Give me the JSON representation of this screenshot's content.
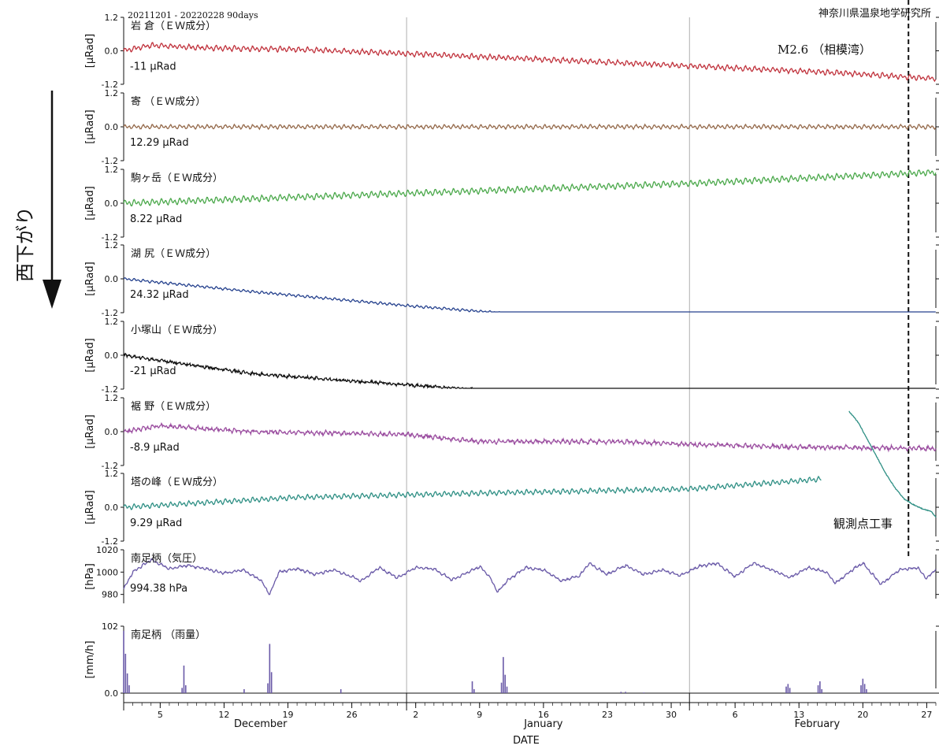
{
  "header": {
    "period": "20211201 - 20220228 90days",
    "institution": "神奈川県温泉地学研究所"
  },
  "left_annotation": "西下がり",
  "event": {
    "label": "M2.6 （相模湾）"
  },
  "construction_note": "観測点工事",
  "chart_data": {
    "type": "line",
    "x_unit": "day index (1 = Dec 1, 2021)",
    "x_range": [
      1,
      90
    ],
    "event_day": 87,
    "x_ticks": [
      {
        "day": 5,
        "label": "5"
      },
      {
        "day": 12,
        "label": "12"
      },
      {
        "day": 19,
        "label": "19"
      },
      {
        "day": 26,
        "label": "26"
      },
      {
        "day": 33,
        "label": "2"
      },
      {
        "day": 40,
        "label": "9"
      },
      {
        "day": 47,
        "label": "16"
      },
      {
        "day": 54,
        "label": "23"
      },
      {
        "day": 61,
        "label": "30"
      },
      {
        "day": 68,
        "label": "6"
      },
      {
        "day": 75,
        "label": "13"
      },
      {
        "day": 82,
        "label": "20"
      },
      {
        "day": 89,
        "label": "27"
      }
    ],
    "month_labels": [
      {
        "day": 16,
        "label": "December"
      },
      {
        "day": 47,
        "label": "January"
      },
      {
        "day": 77,
        "label": "February"
      }
    ],
    "month_boundaries": [
      32,
      63
    ],
    "xlabel": "DATE",
    "panels": [
      {
        "name": "岩 倉（ＥＷ成分）",
        "ylabel": "[μRad]",
        "value_label": "-11 μRad",
        "color": "#c0323c",
        "y_ticks": [
          "1.2",
          "0.0",
          "-1.2"
        ],
        "ylim": [
          -1.2,
          1.2
        ],
        "days": [
          1,
          90
        ],
        "trend": [
          [
            1,
            0.0
          ],
          [
            4,
            0.2
          ],
          [
            10,
            0.1
          ],
          [
            20,
            0.05
          ],
          [
            32,
            -0.1
          ],
          [
            50,
            -0.35
          ],
          [
            70,
            -0.65
          ],
          [
            80,
            -0.8
          ],
          [
            90,
            -1.0
          ]
        ],
        "amp": 0.1,
        "noise": 0.02
      },
      {
        "name": "寄 （ＥＷ成分）",
        "ylabel": "[μRad]",
        "value_label": "12.29 μRad",
        "color": "#94694a",
        "y_ticks": [
          "1.2",
          "0.0",
          "-1.2"
        ],
        "ylim": [
          -1.2,
          1.2
        ],
        "days": [
          1,
          90
        ],
        "trend": [
          [
            1,
            0.0
          ],
          [
            90,
            0.0
          ]
        ],
        "amp": 0.08,
        "noise": 0.015
      },
      {
        "name": "駒ヶ岳（ＥＷ成分）",
        "ylabel": "[μRad]",
        "value_label": "8.22 μRad",
        "color": "#4aa84a",
        "y_ticks": [
          "1.2",
          "0.0",
          "-1.2"
        ],
        "ylim": [
          -1.2,
          1.2
        ],
        "days": [
          1,
          90
        ],
        "trend": [
          [
            1,
            0.0
          ],
          [
            32,
            0.35
          ],
          [
            63,
            0.7
          ],
          [
            90,
            1.1
          ]
        ],
        "amp": 0.12,
        "noise": 0.01
      },
      {
        "name": "湖 尻（ＥＷ成分）",
        "ylabel": "[μRad]",
        "value_label": "24.32 μRad",
        "color": "#26428e",
        "y_ticks": [
          "1.2",
          "0.0",
          "-1.2"
        ],
        "ylim": [
          -1.2,
          1.2
        ],
        "days": [
          1,
          90
        ],
        "trend": [
          [
            1,
            0.0
          ],
          [
            15,
            -0.45
          ],
          [
            32,
            -0.95
          ],
          [
            50,
            -1.4
          ],
          [
            63,
            -1.65
          ],
          [
            90,
            -2.4
          ]
        ],
        "amp": 0.05,
        "noise": 0.01
      },
      {
        "name": "小塚山（ＥＷ成分）",
        "ylabel": "[μRad]",
        "value_label": "-21 μRad",
        "color": "#111111",
        "y_ticks": [
          "1.2",
          "0.0",
          "-1.2"
        ],
        "ylim": [
          -1.2,
          1.2
        ],
        "days": [
          1,
          90
        ],
        "trend": [
          [
            1,
            0.0
          ],
          [
            15,
            -0.65
          ],
          [
            32,
            -1.05
          ],
          [
            50,
            -1.45
          ],
          [
            63,
            -1.75
          ],
          [
            90,
            -2.3
          ]
        ],
        "amp": 0.04,
        "noise": 0.04
      },
      {
        "name": "裾 野（ＥＷ成分）",
        "ylabel": "[μRad]",
        "value_label": "-8.9 μRad",
        "color": "#9b4ea0",
        "y_ticks": [
          "1.2",
          "0.0",
          "-1.2"
        ],
        "ylim": [
          -1.2,
          1.2
        ],
        "days": [
          1,
          90
        ],
        "trend": [
          [
            1,
            0.0
          ],
          [
            5,
            0.2
          ],
          [
            15,
            0.0
          ],
          [
            32,
            -0.1
          ],
          [
            40,
            -0.35
          ],
          [
            55,
            -0.35
          ],
          [
            63,
            -0.45
          ],
          [
            75,
            -0.55
          ],
          [
            90,
            -0.6
          ]
        ],
        "amp": 0.07,
        "noise": 0.04
      },
      {
        "name": "塔の峰（ＥＷ成分）",
        "ylabel": "[μRad]",
        "value_label": "9.29 μRad",
        "color": "#2e8f84",
        "y_ticks": [
          "1.2",
          "0.0",
          "-1.2"
        ],
        "ylim": [
          -1.2,
          1.2
        ],
        "days": [
          1,
          77.5
        ],
        "trend": [
          [
            1,
            0.0
          ],
          [
            20,
            0.35
          ],
          [
            40,
            0.5
          ],
          [
            63,
            0.65
          ],
          [
            77.5,
            1.0
          ]
        ],
        "amp": 0.1,
        "noise": 0.01,
        "extra_segment": [
          [
            80.5,
            3.4
          ],
          [
            81.5,
            3.0
          ],
          [
            82.5,
            2.4
          ],
          [
            83.5,
            1.8
          ],
          [
            84.5,
            1.2
          ],
          [
            85.5,
            0.7
          ],
          [
            86.5,
            0.3
          ],
          [
            87.5,
            0.1
          ],
          [
            88.5,
            -0.05
          ],
          [
            89.5,
            -0.15
          ],
          [
            90,
            -0.35
          ]
        ]
      },
      {
        "name": "南足柄（気圧）",
        "ylabel": "[hPa]",
        "value_label": "994.38 hPa",
        "color": "#6a5aa8",
        "y_ticks": [
          "1020",
          "1000",
          "980"
        ],
        "ylim": [
          972,
          1020
        ],
        "days": [
          1,
          90
        ],
        "trend": [
          [
            1,
            985
          ],
          [
            2,
            1000
          ],
          [
            4,
            1011
          ],
          [
            6,
            1003
          ],
          [
            8,
            1006
          ],
          [
            10,
            1003
          ],
          [
            12,
            999
          ],
          [
            14,
            1002
          ],
          [
            16,
            993
          ],
          [
            17,
            980
          ],
          [
            18,
            1000
          ],
          [
            20,
            1003
          ],
          [
            22,
            998
          ],
          [
            24,
            1002
          ],
          [
            26,
            996
          ],
          [
            27,
            992
          ],
          [
            29,
            1004
          ],
          [
            31,
            995
          ],
          [
            33,
            1004
          ],
          [
            35,
            1003
          ],
          [
            37,
            993
          ],
          [
            39,
            1001
          ],
          [
            40,
            1005
          ],
          [
            41,
            997
          ],
          [
            42,
            982
          ],
          [
            43,
            992
          ],
          [
            45,
            1004
          ],
          [
            47,
            1002
          ],
          [
            49,
            992
          ],
          [
            51,
            997
          ],
          [
            52,
            1008
          ],
          [
            54,
            998
          ],
          [
            56,
            1006
          ],
          [
            58,
            998
          ],
          [
            60,
            1002
          ],
          [
            62,
            997
          ],
          [
            64,
            1005
          ],
          [
            66,
            1008
          ],
          [
            68,
            996
          ],
          [
            70,
            1008
          ],
          [
            72,
            1002
          ],
          [
            74,
            995
          ],
          [
            76,
            1004
          ],
          [
            78,
            1000
          ],
          [
            79,
            990
          ],
          [
            81,
            1003
          ],
          [
            82,
            1008
          ],
          [
            84,
            989
          ],
          [
            86,
            1002
          ],
          [
            88,
            1004
          ],
          [
            89,
            994
          ],
          [
            90,
            1003
          ]
        ],
        "amp": 1.2,
        "noise": 0.5
      },
      {
        "name": "南足柄 （雨量）",
        "ylabel": "[mm/h]",
        "value_label": "",
        "color": "#6a5aa8",
        "type": "bar",
        "y_ticks": [
          "102",
          "0.0"
        ],
        "ylim": [
          0,
          102
        ],
        "bars": [
          [
            1,
            95
          ],
          [
            1.2,
            60
          ],
          [
            1.4,
            30
          ],
          [
            1.6,
            12
          ],
          [
            7.4,
            8
          ],
          [
            7.6,
            42
          ],
          [
            7.8,
            12
          ],
          [
            14.2,
            6
          ],
          [
            16.8,
            15
          ],
          [
            17,
            75
          ],
          [
            17.2,
            32
          ],
          [
            24.8,
            6
          ],
          [
            39.2,
            18
          ],
          [
            39.4,
            6
          ],
          [
            42.4,
            16
          ],
          [
            42.6,
            55
          ],
          [
            42.8,
            28
          ],
          [
            43,
            10
          ],
          [
            55.5,
            2
          ],
          [
            56,
            2
          ],
          [
            58,
            1
          ],
          [
            73.6,
            10
          ],
          [
            73.8,
            14
          ],
          [
            74,
            8
          ],
          [
            77.1,
            12
          ],
          [
            77.3,
            18
          ],
          [
            77.5,
            6
          ],
          [
            81.8,
            12
          ],
          [
            82,
            22
          ],
          [
            82.2,
            14
          ],
          [
            82.4,
            6
          ]
        ]
      }
    ]
  }
}
